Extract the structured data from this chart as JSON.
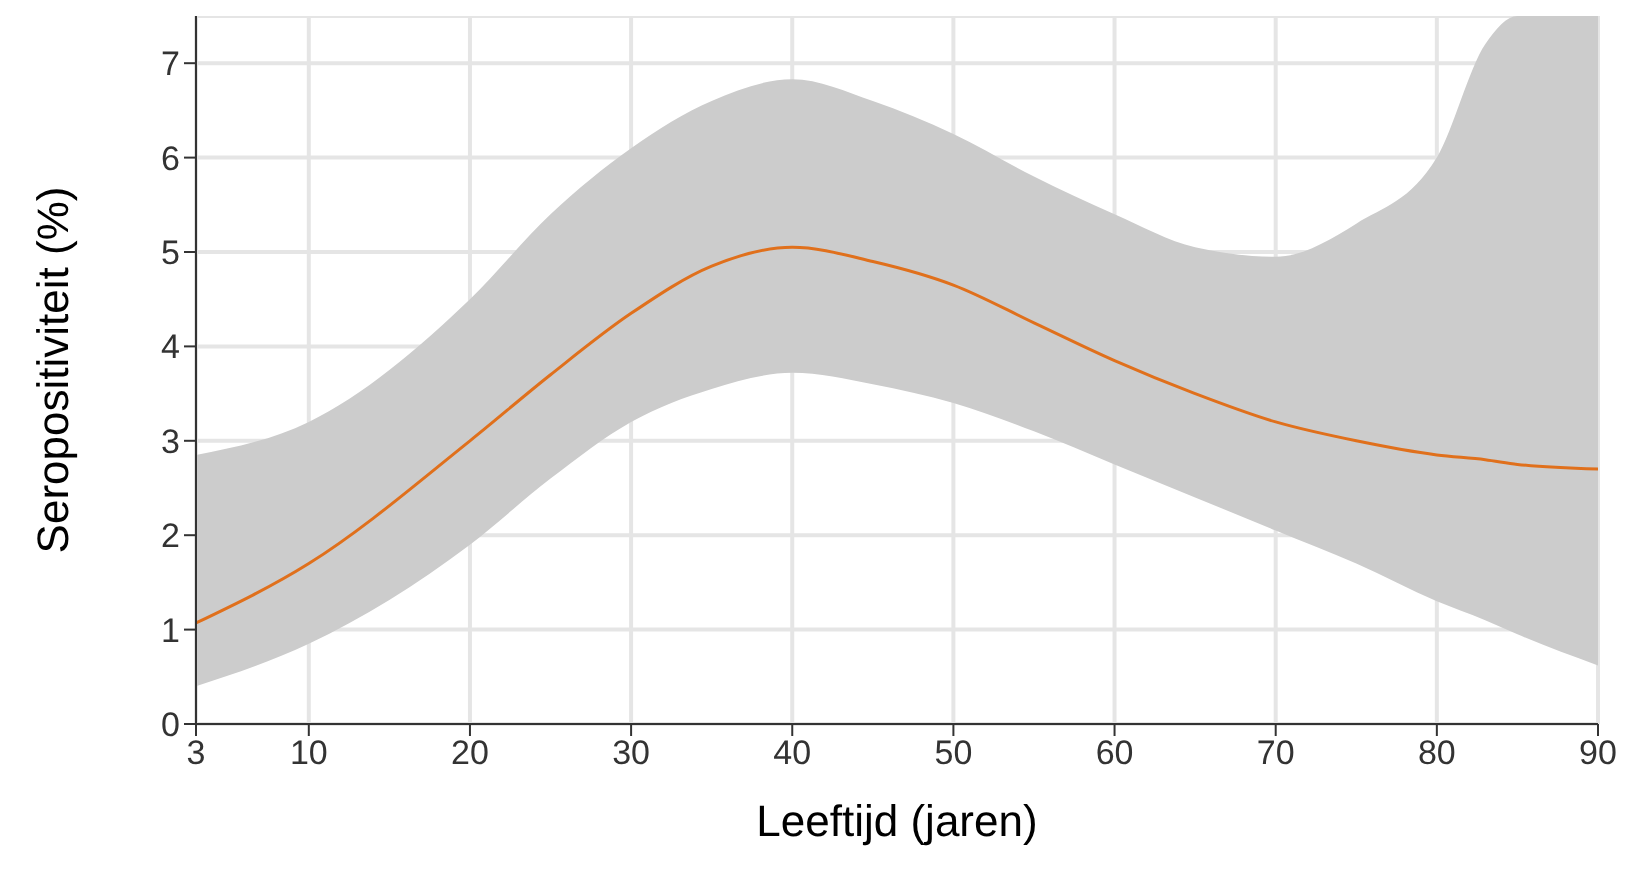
{
  "chart_data": {
    "type": "line",
    "xlabel": "Leeftijd (jaren)",
    "ylabel": "Seropositiviteit (%)",
    "x": [
      3,
      10,
      20,
      25,
      30,
      35,
      40,
      45,
      50,
      55,
      60,
      65,
      70,
      75,
      80,
      83,
      85,
      90
    ],
    "series": [
      {
        "color": "#e0701c",
        "values": [
          1.07,
          1.7,
          3.0,
          3.7,
          4.35,
          4.85,
          5.05,
          4.9,
          4.65,
          4.25,
          3.85,
          3.5,
          3.2,
          3.0,
          2.85,
          2.8,
          2.75,
          2.7
        ],
        "lower": [
          0.4,
          0.85,
          1.9,
          2.6,
          3.2,
          3.55,
          3.72,
          3.6,
          3.4,
          3.1,
          2.75,
          2.4,
          2.05,
          1.7,
          1.3,
          1.1,
          0.95,
          0.62
        ],
        "upper": [
          2.85,
          3.2,
          4.5,
          5.4,
          6.1,
          6.6,
          6.83,
          6.6,
          6.25,
          5.8,
          5.4,
          5.05,
          4.95,
          5.3,
          6.0,
          7.2,
          7.5,
          7.5
        ]
      }
    ],
    "xlim": [
      3,
      90
    ],
    "xticks": [
      3,
      10,
      20,
      30,
      40,
      50,
      60,
      70,
      80,
      90
    ],
    "ylim": [
      0,
      7.5
    ],
    "yticks": [
      0,
      1,
      2,
      3,
      4,
      5,
      6,
      7
    ],
    "grid": true,
    "marker": "none",
    "line_style": "solid"
  }
}
